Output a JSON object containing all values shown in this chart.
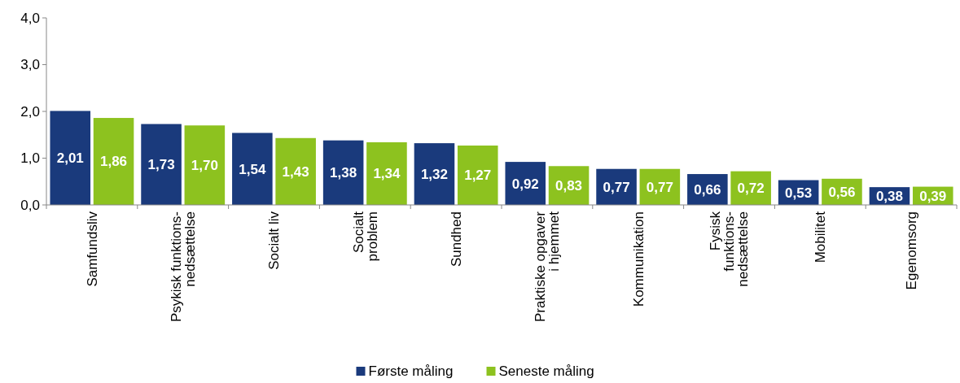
{
  "chart_data": {
    "type": "bar",
    "categories": [
      "Samfundsliv",
      "Psykisk funktions-\nnedsættelse",
      "Socialt liv",
      "Socialt\nproblem",
      "Sundhed",
      "Praktiske opgaver\ni hjemmet",
      "Kommunikation",
      "Fysisk\nfunktions-\nnedsættelse",
      "Mobilitet",
      "Egenomsorg"
    ],
    "series": [
      {
        "name": "Første måling",
        "color": "#1a3a7c",
        "values": [
          2.01,
          1.73,
          1.54,
          1.38,
          1.32,
          0.92,
          0.77,
          0.66,
          0.53,
          0.38
        ],
        "value_labels": [
          "2,01",
          "1,73",
          "1,54",
          "1,38",
          "1,32",
          "0,92",
          "0,77",
          "0,66",
          "0,53",
          "0,38"
        ]
      },
      {
        "name": "Seneste måling",
        "color": "#8dc21f",
        "values": [
          1.86,
          1.7,
          1.43,
          1.34,
          1.27,
          0.83,
          0.77,
          0.72,
          0.56,
          0.39
        ],
        "value_labels": [
          "1,86",
          "1,70",
          "1,43",
          "1,34",
          "1,27",
          "0,83",
          "0,77",
          "0,72",
          "0,56",
          "0,39"
        ]
      }
    ],
    "ylim": [
      0,
      4
    ],
    "yticks": [
      {
        "value": 0,
        "label": "0,0"
      },
      {
        "value": 1,
        "label": "1,0"
      },
      {
        "value": 2,
        "label": "2,0"
      },
      {
        "value": 3,
        "label": "3,0"
      },
      {
        "value": 4,
        "label": "4,0"
      }
    ],
    "grid": false,
    "legend": "bottom"
  }
}
